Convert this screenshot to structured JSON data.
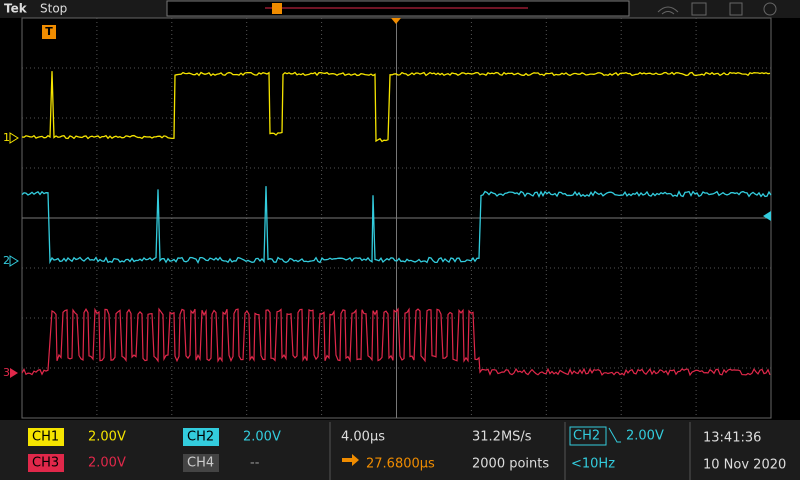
{
  "header": {
    "brand": "Tek",
    "state": "Stop"
  },
  "channels_markers": {
    "ch1": "1",
    "ch2": "2",
    "ch3": "3",
    "trigger": "T"
  },
  "footer": {
    "ch1": {
      "label": "CH1",
      "scale": "2.00V"
    },
    "ch2": {
      "label": "CH2",
      "scale": "2.00V"
    },
    "ch3": {
      "label": "CH3",
      "scale": "2.00V"
    },
    "ch4": {
      "label": "CH4",
      "scale": "--"
    },
    "horizontal": {
      "scale": "4.00µs",
      "position": "27.6800µs",
      "sample_rate": "31.2MS/s",
      "record": "2000 points"
    },
    "trigger": {
      "source": "CH2",
      "level": "2.00V",
      "frequency": "<10Hz"
    },
    "clock": {
      "time": "13:41:36",
      "date": "10 Nov 2020"
    }
  }
}
